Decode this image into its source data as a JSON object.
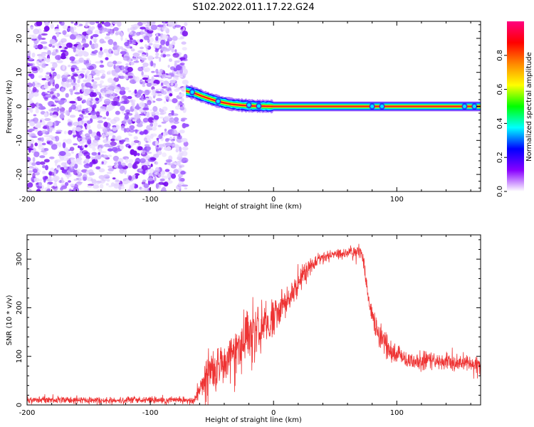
{
  "title": "S102.2022.011.17.22.G24",
  "chart_data": [
    {
      "type": "heatmap",
      "xlabel": "Height of straight line (km)",
      "ylabel": "Frequency (Hz)",
      "xlim": [
        -200,
        168
      ],
      "ylim": [
        -25,
        25
      ],
      "xticks": [
        -200,
        -100,
        0,
        100
      ],
      "yticks": [
        -20,
        -10,
        0,
        10,
        20
      ],
      "onset_height_km": -71,
      "signal_track": [
        {
          "x": -71,
          "y": 4.5
        },
        {
          "x": -65,
          "y": 4.0
        },
        {
          "x": -58,
          "y": 3.0
        },
        {
          "x": -50,
          "y": 2.0
        },
        {
          "x": -42,
          "y": 1.2
        },
        {
          "x": -34,
          "y": 0.6
        },
        {
          "x": -25,
          "y": 0.3
        },
        {
          "x": -15,
          "y": 0.1
        },
        {
          "x": 0,
          "y": 0.0
        },
        {
          "x": 50,
          "y": 0.0
        },
        {
          "x": 100,
          "y": 0.0
        },
        {
          "x": 168,
          "y": 0.0
        }
      ],
      "colorbar": {
        "label": "Normalized spectral amplitude",
        "range": [
          0.0,
          1.0
        ],
        "ticks": [
          "0.0",
          "0.2",
          "0.4",
          "0.6",
          "0.8"
        ],
        "tick_values": [
          0.0,
          0.2,
          0.4,
          0.6,
          0.8
        ],
        "colormap": [
          "#ffffff",
          "#8800ff",
          "#0000ff",
          "#00ffff",
          "#00ff00",
          "#ffff00",
          "#ff8800",
          "#ff0000",
          "#ff0080"
        ]
      }
    },
    {
      "type": "line",
      "xlabel": "Height of straight line (km)",
      "ylabel": "SNR (10 * v/v)",
      "xlim": [
        -200,
        168
      ],
      "ylim": [
        0,
        350
      ],
      "xticks": [
        -200,
        -100,
        0,
        100
      ],
      "yticks": [
        0,
        100,
        200,
        300
      ],
      "color": "#ee3333",
      "envelope": [
        {
          "x": -200,
          "y": 10
        },
        {
          "x": -65,
          "y": 10
        },
        {
          "x": -55,
          "y": 55
        },
        {
          "x": -40,
          "y": 90
        },
        {
          "x": -25,
          "y": 130
        },
        {
          "x": -10,
          "y": 165
        },
        {
          "x": 0,
          "y": 180
        },
        {
          "x": 10,
          "y": 215
        },
        {
          "x": 20,
          "y": 250
        },
        {
          "x": 30,
          "y": 285
        },
        {
          "x": 40,
          "y": 305
        },
        {
          "x": 55,
          "y": 310
        },
        {
          "x": 70,
          "y": 318
        },
        {
          "x": 73,
          "y": 300
        },
        {
          "x": 78,
          "y": 200
        },
        {
          "x": 85,
          "y": 150
        },
        {
          "x": 95,
          "y": 110
        },
        {
          "x": 105,
          "y": 95
        },
        {
          "x": 130,
          "y": 90
        },
        {
          "x": 168,
          "y": 85
        }
      ],
      "noise_amplitude": [
        {
          "x": -200,
          "y": 6
        },
        {
          "x": -65,
          "y": 6
        },
        {
          "x": -55,
          "y": 35
        },
        {
          "x": -20,
          "y": 45
        },
        {
          "x": 20,
          "y": 25
        },
        {
          "x": 40,
          "y": 10
        },
        {
          "x": 72,
          "y": 12
        },
        {
          "x": 80,
          "y": 25
        },
        {
          "x": 100,
          "y": 15
        },
        {
          "x": 168,
          "y": 14
        }
      ]
    }
  ]
}
